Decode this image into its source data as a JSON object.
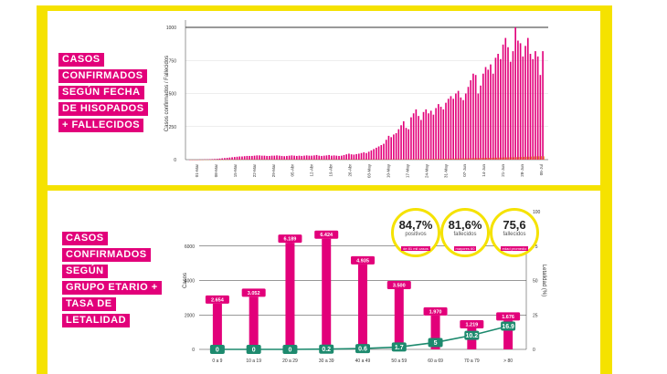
{
  "labels": {
    "top": [
      "CASOS",
      "CONFIRMADOS",
      "SEGÚN FECHA",
      "DE HISOPADOS",
      "+ FALLECIDOS"
    ],
    "bottom": [
      "CASOS",
      "CONFIRMADOS",
      "SEGÚN",
      "GRUPO ETARIO +",
      "TASA DE",
      "LETALIDAD"
    ]
  },
  "stats": [
    {
      "value": "84,7%",
      "caption": "positivos",
      "tag": "de 81 mil casos"
    },
    {
      "value": "81,6%",
      "caption": "fallecidos",
      "tag": "mayores 60"
    },
    {
      "value": "75,6",
      "caption": "fallecidos",
      "tag": "edad promedio"
    }
  ],
  "colors": {
    "accent": "#e2007a",
    "yellow": "#f5e200",
    "deaths": "#e8801e",
    "lethality": "#1d8a6e"
  },
  "chart_data": [
    {
      "type": "bar",
      "ylabel": "Casos confirmados / Fallecidos",
      "ylim": [
        0,
        1000
      ],
      "yticks": [
        "0",
        "250",
        "500",
        "750",
        "1000"
      ],
      "xticks": [
        "01-Mar",
        "08-Mar",
        "15-Mar",
        "22-Mar",
        "29-Mar",
        "05-Abr",
        "12-Abr",
        "19-Abr",
        "26-Abr",
        "03-May",
        "10-May",
        "17-May",
        "24-May",
        "31-May",
        "07-Jun",
        "14-Jun",
        "21-Jun",
        "28-Jun",
        "05-Jul"
      ],
      "series": [
        {
          "name": "Casos confirmados",
          "values": [
            0,
            0,
            0,
            0,
            1,
            1,
            2,
            2,
            3,
            4,
            5,
            6,
            8,
            10,
            12,
            14,
            16,
            18,
            20,
            22,
            24,
            24,
            26,
            28,
            28,
            28,
            30,
            32,
            32,
            30,
            30,
            28,
            28,
            30,
            30,
            32,
            30,
            28,
            26,
            28,
            30,
            32,
            30,
            28,
            30,
            28,
            30,
            32,
            30,
            30,
            32,
            35,
            30,
            28,
            30,
            32,
            35,
            30,
            32,
            30,
            28,
            30,
            35,
            40,
            45,
            40,
            38,
            42,
            45,
            50,
            55,
            50,
            60,
            70,
            80,
            90,
            100,
            110,
            120,
            150,
            180,
            170,
            190,
            200,
            230,
            260,
            290,
            240,
            230,
            320,
            350,
            380,
            330,
            300,
            360,
            380,
            350,
            370,
            340,
            390,
            420,
            400,
            380,
            430,
            460,
            480,
            460,
            500,
            520,
            470,
            450,
            500,
            550,
            600,
            650,
            640,
            500,
            560,
            650,
            700,
            680,
            720,
            650,
            770,
            800,
            760,
            870,
            920,
            850,
            740,
            820,
            1000,
            900,
            880,
            780,
            860,
            920,
            800,
            760,
            820,
            780,
            640,
            820
          ]
        },
        {
          "name": "Fallecidos",
          "values": [
            0,
            0,
            0,
            0,
            0,
            0,
            0,
            0,
            0,
            0,
            0,
            0,
            0,
            0,
            0,
            0,
            1,
            1,
            1,
            1,
            1,
            2,
            2,
            2,
            2,
            2,
            2,
            2,
            2,
            2,
            2,
            2,
            2,
            2,
            2,
            2,
            2,
            2,
            2,
            2,
            2,
            2,
            2,
            2,
            2,
            2,
            2,
            2,
            2,
            2,
            2,
            2,
            2,
            2,
            2,
            2,
            2,
            2,
            2,
            2,
            2,
            2,
            2,
            2,
            2,
            2,
            2,
            2,
            2,
            2,
            2,
            2,
            2,
            2,
            2,
            2,
            2,
            2,
            2,
            2,
            3,
            3,
            3,
            3,
            3,
            3,
            3,
            3,
            4,
            4,
            4,
            4,
            5,
            5,
            5,
            5,
            6,
            6,
            6,
            6,
            7,
            7,
            7,
            8,
            8,
            8,
            8,
            9,
            9,
            10,
            10,
            10,
            11,
            11,
            12,
            12,
            12,
            13,
            13,
            14,
            14,
            14,
            15,
            15,
            16,
            16,
            17,
            17,
            18,
            18,
            18,
            19,
            20,
            20,
            21,
            22,
            22,
            23,
            24,
            25,
            25,
            26,
            25
          ]
        }
      ]
    },
    {
      "type": "bar",
      "ylabel": "Casos",
      "y2label": "Letalidad (%)",
      "ylim": [
        0,
        8000
      ],
      "y2lim": [
        0,
        100
      ],
      "yticks": [
        "0",
        "2000",
        "4000",
        "6000"
      ],
      "y2ticks": [
        "0",
        "25",
        "50",
        "75",
        "100"
      ],
      "categories": [
        "0 a 9",
        "10 a 19",
        "20 a 29",
        "30 a 39",
        "40 a 49",
        "50 a 59",
        "60 a 69",
        "70 a 79",
        "> 80"
      ],
      "series": [
        {
          "name": "Casos",
          "values": [
            2654,
            3052,
            6189,
            6424,
            4935,
            3500,
            1970,
            1219,
            1676
          ],
          "labels": [
            "2.654",
            "3.052",
            "6.189",
            "6.424",
            "4.935",
            "3.500",
            "1.970",
            "1.219",
            "1.676"
          ]
        },
        {
          "name": "Letalidad",
          "values": [
            0,
            0,
            0,
            0.2,
            0.6,
            1.7,
            5,
            10.2,
            16.9
          ],
          "labels": [
            "0",
            "0",
            "0",
            "0.2",
            "0.6",
            "1.7",
            "5",
            "10.2",
            "16.9"
          ]
        }
      ]
    }
  ]
}
